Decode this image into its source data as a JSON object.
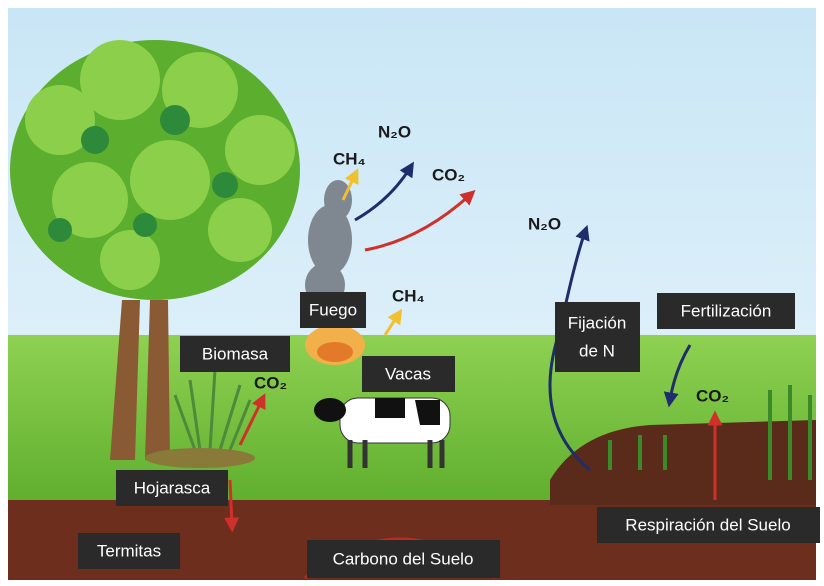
{
  "labels": [
    "Fuego",
    "Biomasa",
    "Vacas",
    "Hojarasca",
    "Termitas",
    "Carbono del Suelo",
    "Fertilización",
    "Respiración del Suelo"
  ],
  "nitrogen_fixation": [
    "Fijación",
    "de N"
  ],
  "gases": [
    "CH₄",
    "N₂O",
    "CO₂",
    "CH₄",
    "CO₂",
    "N₂O",
    "CO₂"
  ]
}
